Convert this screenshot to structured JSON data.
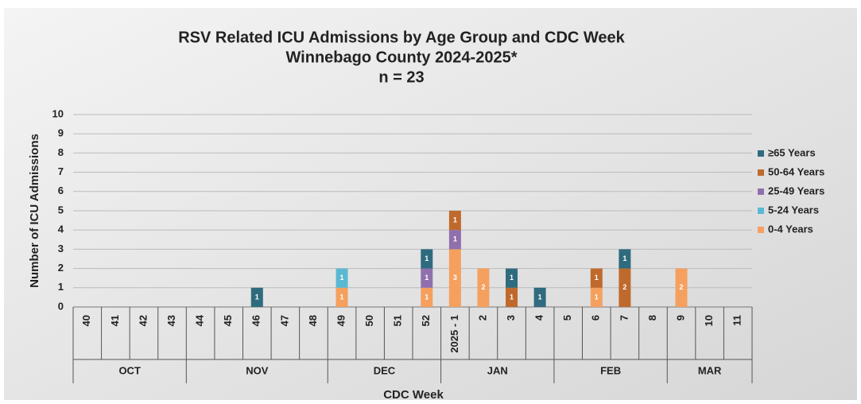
{
  "chart_data": {
    "type": "stacked_bar",
    "title": [
      "RSV Related ICU Admissions by Age Group and CDC Week",
      "Winnebago County 2024-2025*",
      "n = 23"
    ],
    "y_label": "Number of ICU Admissions",
    "x_label": "CDC Week",
    "category_groups": [
      {
        "label": "OCT",
        "categories": [
          "40",
          "41",
          "42",
          "43"
        ]
      },
      {
        "label": "NOV",
        "categories": [
          "44",
          "45",
          "46",
          "47",
          "48"
        ]
      },
      {
        "label": "DEC",
        "categories": [
          "49",
          "50",
          "51",
          "52"
        ]
      },
      {
        "label": "JAN",
        "categories": [
          "2025 - 1",
          "2",
          "3",
          "4"
        ]
      },
      {
        "label": "FEB",
        "categories": [
          "5",
          "6",
          "7",
          "8"
        ]
      },
      {
        "label": "MAR",
        "categories": [
          "9",
          "10",
          "11"
        ]
      }
    ],
    "series": [
      {
        "name": "0-4 Years",
        "color": "#f5a05e",
        "values": [
          0,
          0,
          0,
          0,
          0,
          0,
          0,
          0,
          0,
          1,
          0,
          0,
          1,
          3,
          2,
          0,
          0,
          0,
          1,
          0,
          0,
          2,
          0,
          0
        ]
      },
      {
        "name": "5-24 Years",
        "color": "#5ab9d2",
        "values": [
          0,
          0,
          0,
          0,
          0,
          0,
          0,
          0,
          0,
          1,
          0,
          0,
          0,
          0,
          0,
          0,
          0,
          0,
          0,
          0,
          0,
          0,
          0,
          0
        ]
      },
      {
        "name": "25-49 Years",
        "color": "#8f70ad",
        "values": [
          0,
          0,
          0,
          0,
          0,
          0,
          0,
          0,
          0,
          0,
          0,
          0,
          1,
          1,
          0,
          0,
          0,
          0,
          0,
          0,
          0,
          0,
          0,
          0
        ]
      },
      {
        "name": "50-64 Years",
        "color": "#bf6a2c",
        "values": [
          0,
          0,
          0,
          0,
          0,
          0,
          0,
          0,
          0,
          0,
          0,
          0,
          0,
          1,
          0,
          1,
          0,
          0,
          1,
          2,
          0,
          0,
          0,
          0
        ]
      },
      {
        "name": "≥65 Years",
        "color": "#2f6b7e",
        "values": [
          0,
          0,
          0,
          0,
          0,
          0,
          1,
          0,
          0,
          0,
          0,
          0,
          1,
          0,
          0,
          1,
          1,
          0,
          0,
          1,
          0,
          0,
          0,
          0
        ]
      }
    ],
    "ylim": [
      0,
      10
    ],
    "yticks": [
      0,
      1,
      2,
      3,
      4,
      5,
      6,
      7,
      8,
      9,
      10
    ],
    "grid": true,
    "legend": "right"
  }
}
